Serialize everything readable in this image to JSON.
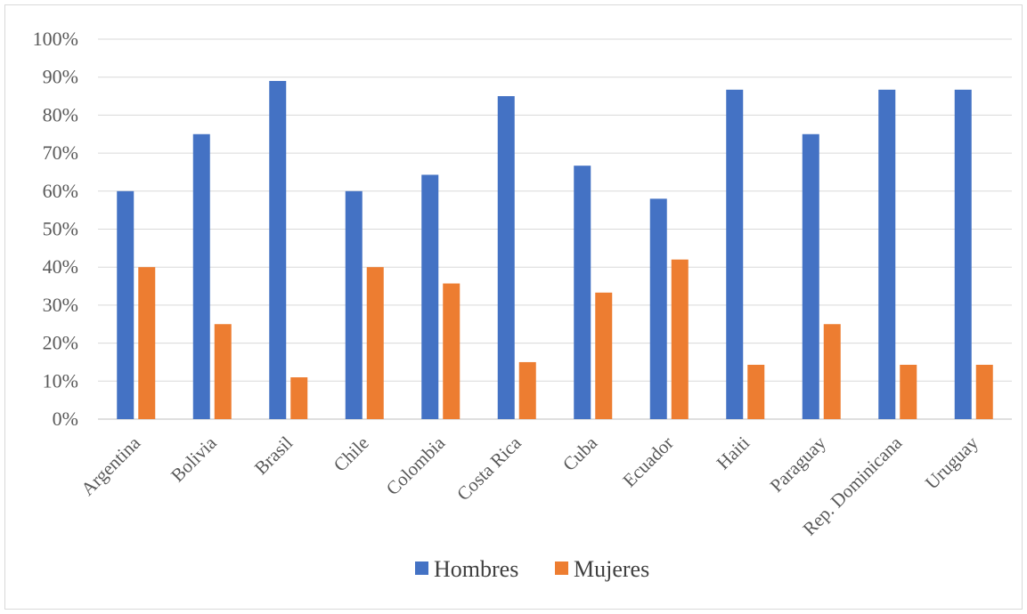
{
  "chart_data": {
    "type": "bar",
    "categories": [
      "Argentina",
      "Bolivia",
      "Brasil",
      "Chile",
      "Colombia",
      "Costa Rica",
      "Cuba",
      "Ecuador",
      "Haiti",
      "Paraguay",
      "Rep. Dominicana",
      "Uruguay"
    ],
    "series": [
      {
        "name": "Hombres",
        "color": "#4472c4",
        "values": [
          60,
          75,
          89,
          60,
          64.3,
          85,
          66.7,
          58,
          86.7,
          75,
          86.7,
          86.7
        ]
      },
      {
        "name": "Mujeres",
        "color": "#ed7d31",
        "values": [
          40,
          25,
          11,
          40,
          35.7,
          15,
          33.3,
          42,
          14.3,
          25,
          14.3,
          14.3
        ]
      }
    ],
    "yticks": [
      "0%",
      "10%",
      "20%",
      "30%",
      "40%",
      "50%",
      "60%",
      "70%",
      "80%",
      "90%",
      "100%"
    ],
    "ylim": [
      0,
      100
    ],
    "grid": true,
    "legend_position": "bottom",
    "title": "",
    "xlabel": "",
    "ylabel": ""
  }
}
